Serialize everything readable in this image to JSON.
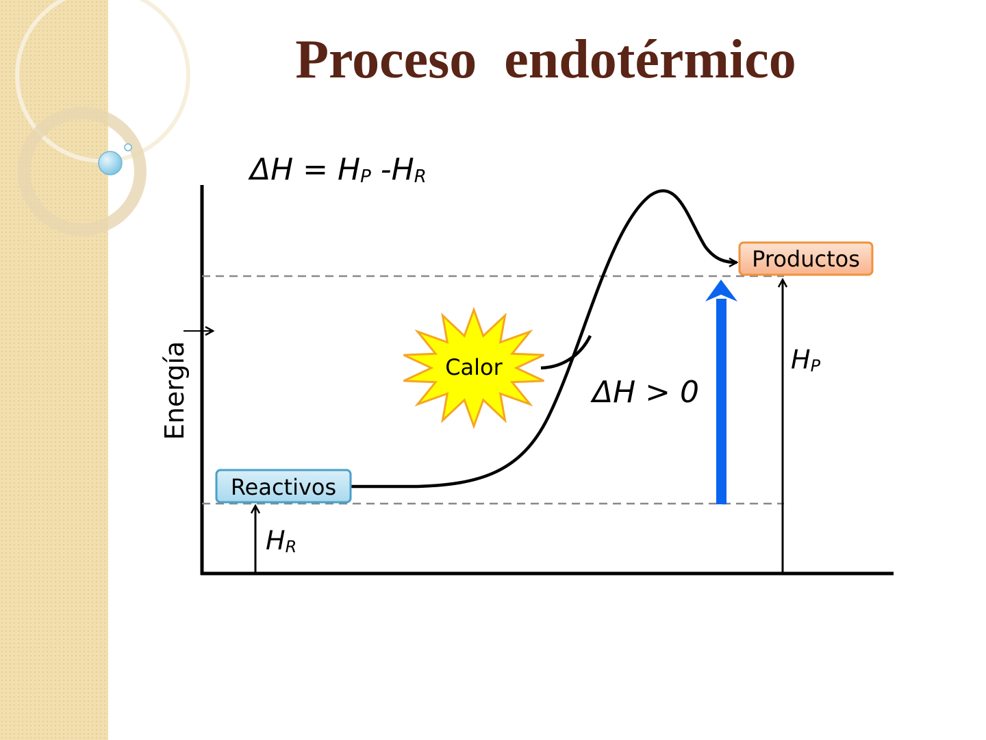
{
  "title": "Proceso  endotérmico",
  "formula": {
    "lhs": "ΔH = H",
    "sub_p": "P",
    "mid": " -H",
    "sub_r": "R"
  },
  "axis_label": "Energía",
  "reactants": "Reactivos",
  "products": "Productos",
  "heat": "Calor",
  "delta_label": "ΔH > 0",
  "hp_label": {
    "main": "H",
    "sub": "P"
  },
  "hr_label": {
    "main": "H",
    "sub": "R"
  }
}
